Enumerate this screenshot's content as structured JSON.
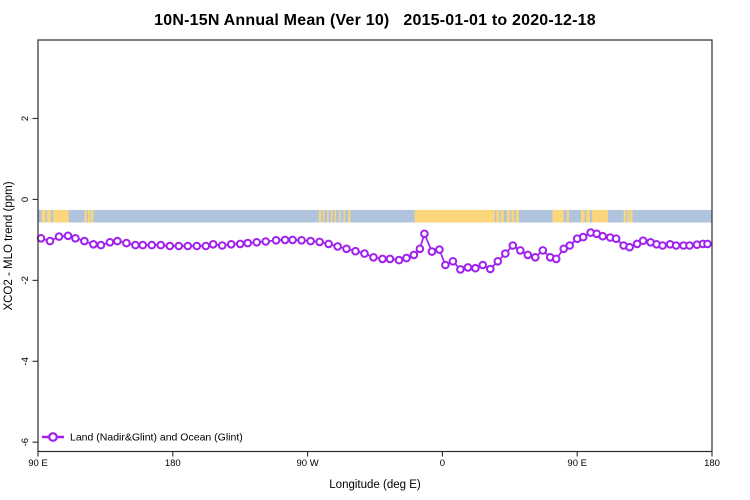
{
  "title": "10N-15N Annual Mean (Ver 10)   2015-01-01 to 2020-12-18",
  "chart_data": {
    "type": "line",
    "title": "10N-15N Annual Mean (Ver 10)   2015-01-01 to 2020-12-18",
    "xlabel": "Longitude (deg E)",
    "ylabel": "XCO2 - MLO trend (ppm)",
    "xlim": [
      90,
      540
    ],
    "ylim": [
      -6.23,
      3.94
    ],
    "grid": false,
    "frame_color": "#2b2b2b",
    "x_ticks": [
      {
        "value": 90,
        "label": "90 E"
      },
      {
        "value": 180,
        "label": "180"
      },
      {
        "value": 270,
        "label": "90 W"
      },
      {
        "value": 360,
        "label": "0"
      },
      {
        "value": 450,
        "label": "90 E"
      },
      {
        "value": 540,
        "label": "180"
      }
    ],
    "y_ticks": [
      {
        "value": 2,
        "label": "2"
      },
      {
        "value": 0,
        "label": "0"
      },
      {
        "value": -2,
        "label": "-2"
      },
      {
        "value": -4,
        "label": "-4"
      },
      {
        "value": -6,
        "label": "-6"
      }
    ],
    "series": [
      {
        "name": "Land (Nadir&Glint) and Ocean (Glint)",
        "color": "#A020F0",
        "marker": "open-circle",
        "x": [
          92,
          98,
          104,
          110,
          115,
          121,
          127,
          132,
          138,
          143,
          149,
          155,
          160,
          166,
          172,
          178,
          184,
          190,
          196,
          202,
          207,
          213,
          219,
          225,
          230,
          236,
          242,
          249,
          255,
          260,
          266,
          272,
          278,
          284,
          290,
          296,
          302,
          308,
          314,
          320,
          325,
          331,
          336,
          341,
          345,
          348,
          353,
          358,
          362,
          367,
          372,
          377,
          382,
          387,
          392,
          397,
          402,
          407,
          412,
          417,
          422,
          427,
          432,
          436,
          441,
          445,
          450,
          454,
          459,
          463,
          467,
          472,
          476,
          481,
          485,
          490,
          494,
          499,
          503,
          507,
          512,
          516,
          521,
          525,
          530,
          534,
          537
        ],
        "values": [
          -0.96,
          -1.03,
          -0.92,
          -0.9,
          -0.96,
          -1.03,
          -1.11,
          -1.13,
          -1.06,
          -1.03,
          -1.08,
          -1.13,
          -1.13,
          -1.13,
          -1.13,
          -1.15,
          -1.15,
          -1.15,
          -1.15,
          -1.15,
          -1.11,
          -1.14,
          -1.11,
          -1.1,
          -1.08,
          -1.06,
          -1.04,
          -1.01,
          -1.0,
          -1.0,
          -1.01,
          -1.03,
          -1.05,
          -1.1,
          -1.16,
          -1.22,
          -1.28,
          -1.34,
          -1.43,
          -1.47,
          -1.47,
          -1.5,
          -1.45,
          -1.37,
          -1.22,
          -0.85,
          -1.29,
          -1.24,
          -1.62,
          -1.53,
          -1.73,
          -1.68,
          -1.7,
          -1.62,
          -1.72,
          -1.53,
          -1.34,
          -1.14,
          -1.26,
          -1.37,
          -1.43,
          -1.26,
          -1.43,
          -1.47,
          -1.22,
          -1.14,
          -0.97,
          -0.93,
          -0.82,
          -0.85,
          -0.91,
          -0.94,
          -0.97,
          -1.14,
          -1.18,
          -1.1,
          -1.02,
          -1.06,
          -1.11,
          -1.14,
          -1.11,
          -1.14,
          -1.14,
          -1.14,
          -1.12,
          -1.1,
          -1.1
        ]
      }
    ],
    "map_band": {
      "description": "latitude-strip map: ocean blue with land patches",
      "y_range": [
        -0.57,
        -0.26
      ],
      "ocean_color": "#B0C4DE",
      "land_color": "#FCD67A",
      "land_segments_deg": [
        [
          92.5,
          95
        ],
        [
          96,
          98.5
        ],
        [
          100,
          110.5
        ],
        [
          121,
          122.5
        ],
        [
          123.5,
          125
        ],
        [
          125.5,
          127
        ],
        [
          277.5,
          279
        ],
        [
          280,
          281
        ],
        [
          283,
          284
        ],
        [
          285.5,
          286.5
        ],
        [
          288,
          289
        ],
        [
          291,
          292
        ],
        [
          294,
          295
        ],
        [
          297,
          298.5
        ],
        [
          341.5,
          395
        ],
        [
          396,
          398
        ],
        [
          399,
          401
        ],
        [
          403,
          405
        ],
        [
          406,
          408
        ],
        [
          409,
          411
        ],
        [
          433.5,
          441
        ],
        [
          443,
          444.5
        ],
        [
          452.5,
          455
        ],
        [
          456,
          458.5
        ],
        [
          460,
          470.5
        ],
        [
          481,
          482.5
        ],
        [
          483.5,
          485
        ],
        [
          485.5,
          487
        ]
      ]
    },
    "legend": {
      "position": "bottom-left",
      "entries": [
        {
          "label": "Land (Nadir&Glint) and Ocean (Glint)",
          "color": "#A020F0",
          "marker": "open-circle"
        }
      ]
    }
  }
}
